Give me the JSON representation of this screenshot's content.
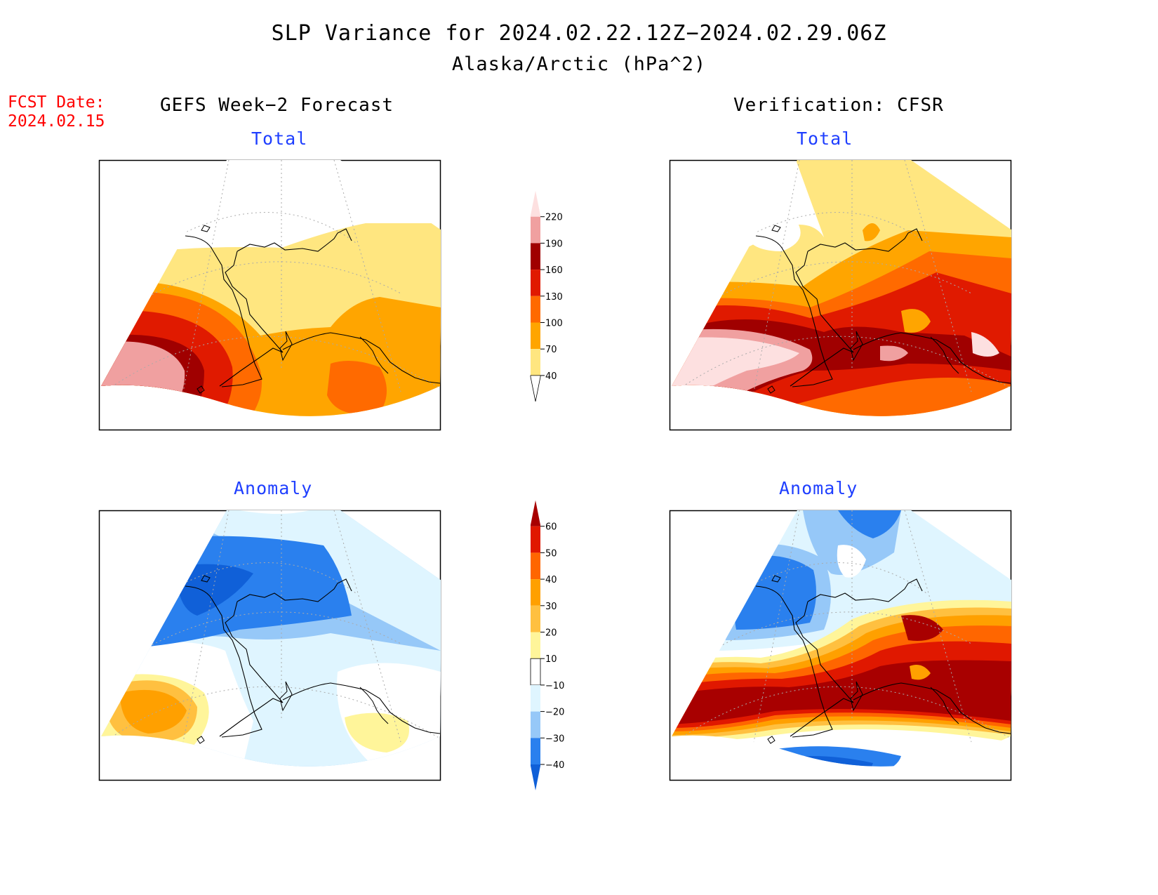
{
  "title": "SLP Variance for 2024.02.22.12Z−2024.02.29.06Z",
  "subtitle": "Alaska/Arctic (hPa^2)",
  "forecast_date": {
    "label": "FCST Date:",
    "value": "2024.02.15"
  },
  "columns": {
    "left": "GEFS Week−2 Forecast",
    "right": "Verification: CFSR"
  },
  "panels": {
    "top_left": {
      "title": "Total",
      "source": "GEFS Week-2 Forecast",
      "field": "total"
    },
    "top_right": {
      "title": "Total",
      "source": "Verification: CFSR",
      "field": "total"
    },
    "bottom_left": {
      "title": "Anomaly",
      "source": "GEFS Week-2 Forecast",
      "field": "anomaly"
    },
    "bottom_right": {
      "title": "Anomaly",
      "source": "Verification: CFSR",
      "field": "anomaly"
    }
  },
  "colorbars": {
    "total": {
      "levels": [
        "40",
        "70",
        "100",
        "130",
        "160",
        "190",
        "220"
      ],
      "colors": [
        "#ffffff",
        "#ffe680",
        "#ffa500",
        "#ff6a00",
        "#e01a00",
        "#a00000",
        "#f0a0a0",
        "#fde0e0"
      ]
    },
    "anomaly": {
      "levels": [
        "−40",
        "−30",
        "−20",
        "−10",
        "10",
        "20",
        "30",
        "40",
        "50",
        "60"
      ],
      "colors": [
        "#1060d8",
        "#2a80ee",
        "#96c8f8",
        "#dff5ff",
        "#ffffff",
        "#fff59a",
        "#ffc040",
        "#ffa000",
        "#ff6600",
        "#e01800",
        "#a80000"
      ]
    }
  }
}
